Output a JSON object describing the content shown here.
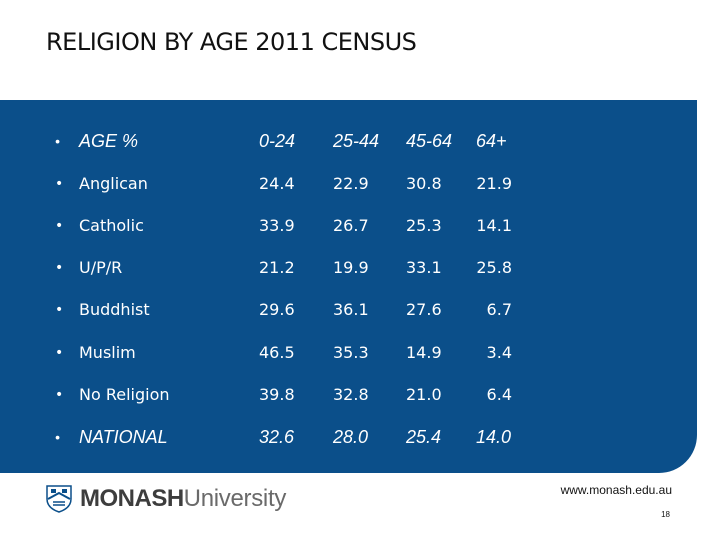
{
  "title": "RELIGION BY AGE 2011 CENSUS",
  "table": {
    "header": [
      "AGE %",
      "0-24",
      "25-44",
      "45-64",
      "64+"
    ],
    "rows": [
      {
        "label": "Anglican",
        "values": [
          "24.4",
          "22.9",
          "30.8",
          "21.9"
        ]
      },
      {
        "label": "Catholic",
        "values": [
          "33.9",
          "26.7",
          "25.3",
          "14.1"
        ]
      },
      {
        "label": "U/P/R",
        "values": [
          "21.2",
          "19.9",
          "33.1",
          "25.8"
        ]
      },
      {
        "label": "Buddhist",
        "values": [
          "29.6",
          "36.1",
          "27.6",
          "6.7"
        ]
      },
      {
        "label": "Muslim",
        "values": [
          "46.5",
          "35.3",
          "14.9",
          "3.4"
        ]
      },
      {
        "label": "No Religion",
        "values": [
          "39.8",
          "32.8",
          "21.0",
          "6.4"
        ]
      }
    ],
    "national": {
      "label": "NATIONAL",
      "values": [
        "32.6",
        "28.0",
        "25.4",
        "14.0"
      ]
    }
  },
  "logo": {
    "brand": "MONASH",
    "suffix": "University"
  },
  "url": "www.monash.edu.au",
  "page_number": "18",
  "colors": {
    "panel": "#0b4f8a",
    "text_on_panel": "#ffffff"
  }
}
